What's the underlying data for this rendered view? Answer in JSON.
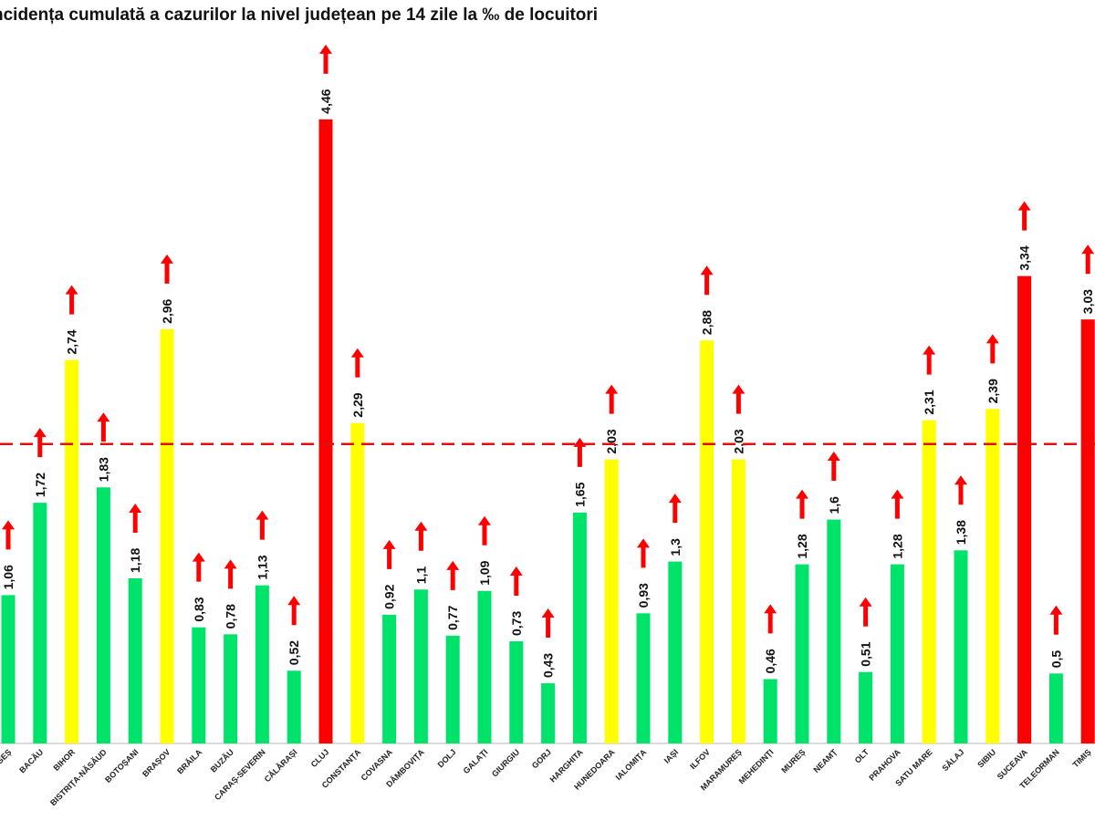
{
  "chart_data": {
    "type": "bar",
    "title": "ncidența cumulată a cazurilor la nivel județean pe 14 zile la ‰ de locuitori",
    "xlabel": "",
    "ylabel": "",
    "ylim": [
      0,
      5
    ],
    "grid": false,
    "legend": "none",
    "reference_line": {
      "value": 2.14,
      "color": "#ff0000",
      "style": "dashed"
    },
    "arrow_icon": "red-up-arrow-icon",
    "categories": [
      "ARGEȘ",
      "BACĂU",
      "BIHOR",
      "BISTRIȚA-NĂSĂUD",
      "BOTOȘANI",
      "BRAȘOV",
      "BRĂILA",
      "BUZĂU",
      "CARAȘ-SEVERIN",
      "CĂLĂRAȘI",
      "CLUJ",
      "CONSTANȚA",
      "COVASNA",
      "DÂMBOVIȚA",
      "DOLJ",
      "GALAȚI",
      "GIURGIU",
      "GORJ",
      "HARGHITA",
      "HUNEDOARA",
      "IALOMIȚA",
      "IAȘI",
      "ILFOV",
      "MARAMUREȘ",
      "MEHEDINȚI",
      "MUREȘ",
      "NEAMȚ",
      "OLT",
      "PRAHOVA",
      "SATU MARE",
      "SĂLAJ",
      "SIBIU",
      "SUCEAVA",
      "TELEORMAN",
      "TIMIȘ"
    ],
    "values": [
      1.06,
      1.72,
      2.74,
      1.83,
      1.18,
      2.96,
      0.83,
      0.78,
      1.13,
      0.52,
      4.46,
      2.29,
      0.92,
      1.1,
      0.77,
      1.09,
      0.73,
      0.43,
      1.65,
      2.03,
      0.93,
      1.3,
      2.88,
      2.03,
      0.46,
      1.28,
      1.6,
      0.51,
      1.28,
      2.31,
      1.38,
      2.39,
      3.34,
      0.5,
      3.03
    ],
    "labels": [
      "1,06",
      "1,72",
      "2,74",
      "1,83",
      "1,18",
      "2,96",
      "0,83",
      "0,78",
      "1,13",
      "0,52",
      "4,46",
      "2,29",
      "0,92",
      "1,1",
      "0,77",
      "1,09",
      "0,73",
      "0,43",
      "1,65",
      "2,03",
      "0,93",
      "1,3",
      "2,88",
      "2,03",
      "0,46",
      "1,28",
      "1,6",
      "0,51",
      "1,28",
      "2,31",
      "1,38",
      "2,39",
      "3,34",
      "0,5",
      "3,03"
    ],
    "bar_colors": [
      "green",
      "green",
      "yellow",
      "green",
      "green",
      "yellow",
      "green",
      "green",
      "green",
      "green",
      "red",
      "yellow",
      "green",
      "green",
      "green",
      "green",
      "green",
      "green",
      "green",
      "yellow",
      "green",
      "green",
      "yellow",
      "yellow",
      "green",
      "green",
      "green",
      "green",
      "green",
      "yellow",
      "green",
      "yellow",
      "red",
      "green",
      "red"
    ],
    "colors": {
      "green": "#00e36a",
      "yellow": "#ffff00",
      "red": "#ff0000",
      "arrow": "#ff0000",
      "reference": "#e01010"
    }
  }
}
